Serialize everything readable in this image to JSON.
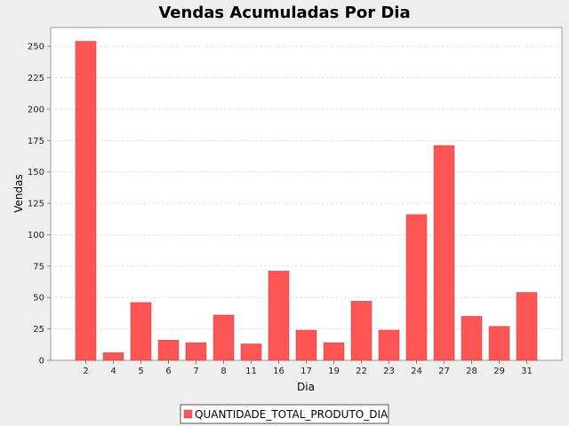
{
  "chart_data": {
    "type": "bar",
    "title": "Vendas Acumuladas Por Dia",
    "xlabel": "Dia",
    "ylabel": "Vendas",
    "ylim": [
      0,
      265
    ],
    "yticks": [
      0,
      25,
      50,
      75,
      100,
      125,
      150,
      175,
      200,
      225,
      250
    ],
    "categories": [
      "2",
      "4",
      "5",
      "6",
      "7",
      "8",
      "11",
      "16",
      "17",
      "19",
      "22",
      "23",
      "24",
      "27",
      "28",
      "29",
      "31"
    ],
    "series": [
      {
        "name": "QUANTIDADE_TOTAL_PRODUTO_DIA",
        "values": [
          254,
          6,
          46,
          16,
          14,
          36,
          13,
          71,
          24,
          14,
          47,
          24,
          116,
          171,
          35,
          27,
          54
        ]
      }
    ],
    "grid": true,
    "legend_position": "bottom",
    "bar_color": "#ff5555",
    "bar_stroke": "#c44040",
    "background_color": "#eeeeee",
    "plot_background": "#ffffff",
    "grid_color": "#d8d8d8"
  }
}
